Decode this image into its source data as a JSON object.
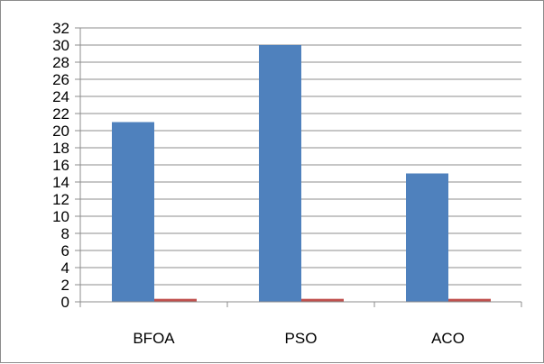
{
  "chart_data": {
    "type": "bar",
    "categories": [
      "BFOA",
      "PSO",
      "ACO"
    ],
    "series": [
      {
        "values": [
          21,
          30,
          15
        ],
        "color": "#4f81bd"
      },
      {
        "values": [
          0.35,
          0.35,
          0.35
        ],
        "color": "#c0504d"
      }
    ],
    "ylim": [
      0,
      32
    ],
    "yticks": [
      0,
      2,
      4,
      6,
      8,
      10,
      12,
      14,
      16,
      18,
      20,
      22,
      24,
      26,
      28,
      30,
      32
    ],
    "grid": true,
    "legend": "none"
  }
}
